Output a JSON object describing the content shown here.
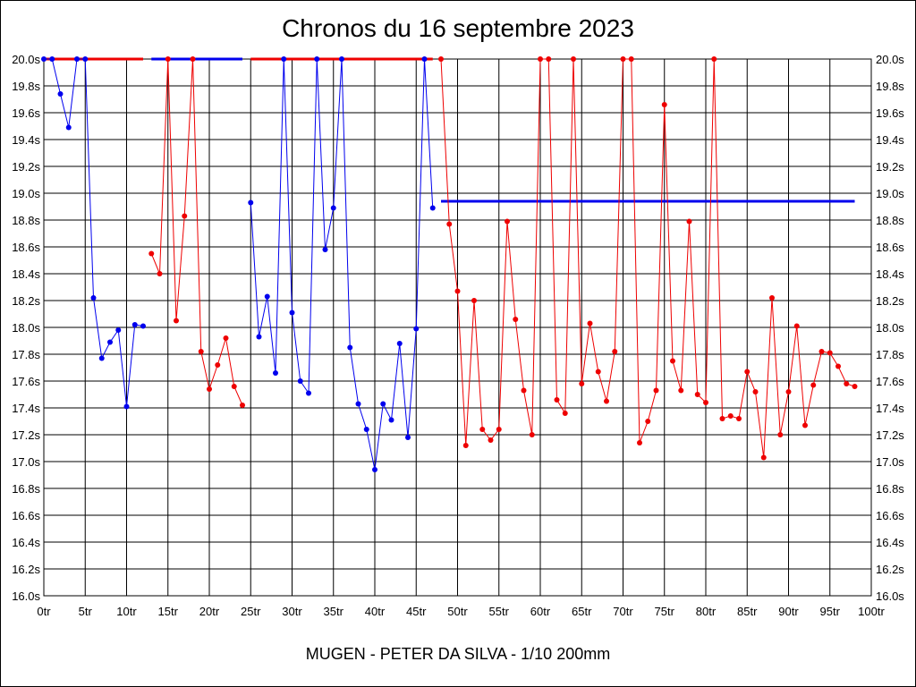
{
  "window": {
    "title": "Chronos du 16 septembre 2023"
  },
  "footer": {
    "text": "MUGEN - PETER DA SILVA - 1/10 200mm"
  },
  "chart_data": {
    "type": "line",
    "title": "Chronos du 16 septembre 2023",
    "xlabel": "MUGEN - PETER DA SILVA - 1/10 200mm",
    "ylabel": "",
    "xlim": [
      0,
      100
    ],
    "ylim": [
      16.0,
      20.0
    ],
    "grid": true,
    "x_tick_labels": [
      "0tr",
      "5tr",
      "10tr",
      "15tr",
      "20tr",
      "25tr",
      "30tr",
      "35tr",
      "40tr",
      "45tr",
      "50tr",
      "55tr",
      "60tr",
      "65tr",
      "70tr",
      "75tr",
      "80tr",
      "85tr",
      "90tr",
      "95tr",
      "100tr"
    ],
    "y_tick_labels": [
      "16.0s",
      "16.2s",
      "16.4s",
      "16.6s",
      "16.8s",
      "17.0s",
      "17.2s",
      "17.4s",
      "17.6s",
      "17.8s",
      "18.0s",
      "18.2s",
      "18.4s",
      "18.6s",
      "18.8s",
      "19.0s",
      "19.2s",
      "19.4s",
      "19.6s",
      "19.8s",
      "20.0s"
    ],
    "colors": {
      "series_a": "#0000ee",
      "series_b": "#ee0000"
    },
    "series": [
      {
        "color": "#0000ee",
        "x": [
          0,
          1,
          2,
          3,
          4,
          5,
          6,
          7,
          8,
          9,
          10,
          11,
          12
        ],
        "y": [
          20.0,
          20.0,
          19.74,
          19.49,
          20.0,
          20.0,
          18.22,
          17.77,
          17.89,
          17.98,
          17.41,
          18.02,
          18.01
        ]
      },
      {
        "color": "#ee0000",
        "x": [
          13,
          14,
          15,
          16,
          17,
          18,
          19,
          20,
          21,
          22,
          23,
          24
        ],
        "y": [
          18.55,
          18.4,
          20.0,
          18.05,
          18.83,
          20.0,
          17.82,
          17.54,
          17.72,
          17.92,
          17.56,
          17.42
        ]
      },
      {
        "color": "#0000ee",
        "x": [
          25,
          26,
          27,
          28,
          29,
          30,
          31,
          32,
          33,
          34,
          35,
          36,
          37,
          38,
          39,
          40,
          41,
          42,
          43,
          44,
          45,
          46,
          47
        ],
        "y": [
          18.93,
          17.93,
          18.23,
          17.66,
          20.0,
          18.11,
          17.6,
          17.51,
          20.0,
          18.58,
          18.89,
          20.0,
          17.85,
          17.43,
          17.24,
          16.94,
          17.43,
          17.31,
          17.88,
          17.18,
          17.99,
          20.0,
          18.89
        ]
      },
      {
        "color": "#ee0000",
        "x": [
          48,
          49,
          50,
          51,
          52,
          53,
          54,
          55,
          56,
          57,
          58,
          59,
          60,
          61,
          62,
          63,
          64,
          65,
          66,
          67,
          68,
          69,
          70,
          71,
          72,
          73,
          74,
          75,
          76,
          77,
          78,
          79,
          80,
          81,
          82,
          83,
          84,
          85,
          86,
          87,
          88,
          89,
          90,
          91,
          92,
          93,
          94,
          95,
          96,
          97,
          98
        ],
        "y": [
          20.0,
          18.77,
          18.27,
          17.12,
          18.2,
          17.24,
          17.16,
          17.24,
          18.79,
          18.06,
          17.53,
          17.2,
          20.0,
          20.0,
          17.46,
          17.36,
          20.0,
          17.58,
          18.03,
          17.67,
          17.45,
          17.82,
          20.0,
          20.0,
          17.14,
          17.3,
          17.53,
          19.66,
          17.75,
          17.53,
          18.79,
          17.5,
          17.44,
          20.0,
          17.32,
          17.34,
          17.32,
          17.67,
          17.52,
          17.03,
          18.22,
          17.2,
          17.52,
          18.01,
          17.27,
          17.57,
          17.82,
          17.81,
          17.71,
          17.58,
          17.56
        ]
      }
    ],
    "reference_lines": [
      {
        "color": "#ee0000",
        "y": 20.0,
        "x_from": 0,
        "x_to": 12
      },
      {
        "color": "#0000ee",
        "y": 20.0,
        "x_from": 13,
        "x_to": 24
      },
      {
        "color": "#ee0000",
        "y": 20.0,
        "x_from": 25,
        "x_to": 47
      },
      {
        "color": "#0000ee",
        "y": 18.94,
        "x_from": 48,
        "x_to": 98
      }
    ]
  }
}
